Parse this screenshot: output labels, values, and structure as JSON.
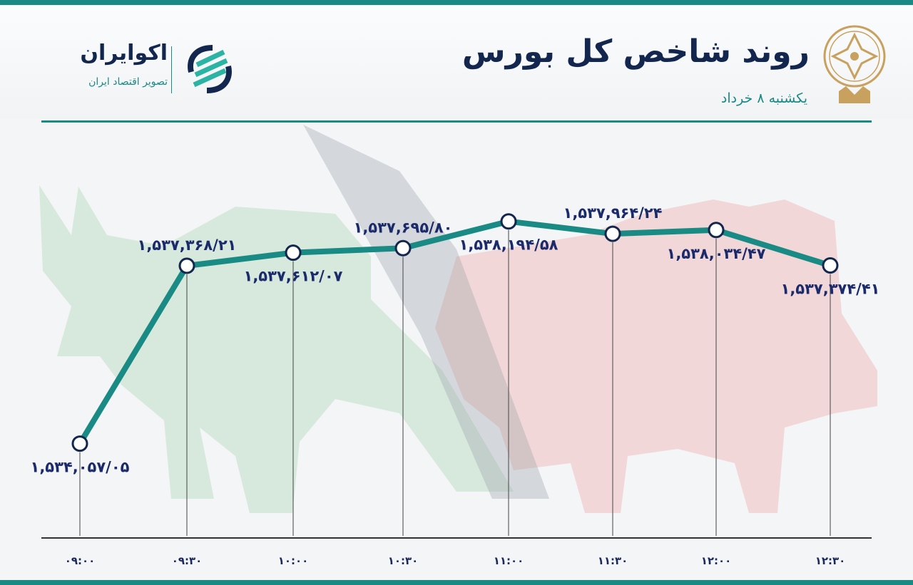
{
  "header": {
    "title": "روند شاخص کل بورس",
    "subtitle": "یکشنبه ۸ خرداد",
    "brand_name": "اکوایران",
    "brand_tagline": "تصویر اقتصاد ایران"
  },
  "colors": {
    "accent": "#1a8a84",
    "navy": "#12264e",
    "label": "#1b2a6b",
    "bull_bg": "#cfe6d6",
    "bear_bg": "#f0cfcf"
  },
  "chart_data": {
    "type": "line",
    "title": "روند شاخص کل بورس",
    "xlabel": "",
    "ylabel": "",
    "categories": [
      "۰۹:۰۰",
      "۰۹:۳۰",
      "۱۰:۰۰",
      "۱۰:۳۰",
      "۱۱:۰۰",
      "۱۱:۳۰",
      "۱۲:۰۰",
      "۱۲:۳۰"
    ],
    "values": [
      1534057.05,
      1537368.21,
      1537612.07,
      1537695.8,
      1538194.58,
      1537964.24,
      1538034.47,
      1537374.41
    ],
    "data_labels": [
      "۱,۵۳۴,۰۵۷/۰۵",
      "۱,۵۳۷,۳۶۸/۲۱",
      "۱,۵۳۷,۶۱۲/۰۷",
      "۱,۵۳۷,۶۹۵/۸۰",
      "۱,۵۳۸,۱۹۴/۵۸",
      "۱,۵۳۷,۹۶۴/۲۴",
      "۱,۵۳۸,۰۳۴/۴۷",
      "۱,۵۳۷,۳۷۴/۴۱"
    ],
    "ylim": [
      1532300,
      1539000
    ],
    "grid": false,
    "legend": "none"
  }
}
